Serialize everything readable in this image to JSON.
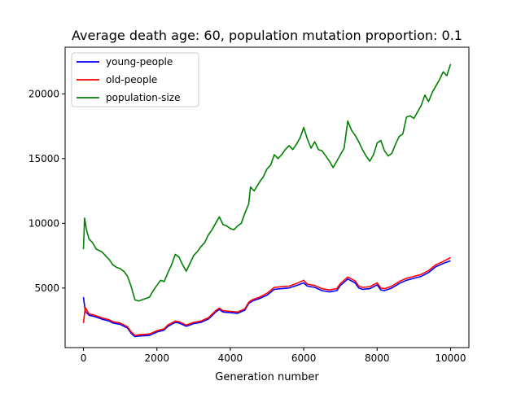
{
  "chart_data": {
    "type": "line",
    "title": "Average death age: 60, population mutation proportion: 0.1",
    "xlabel": "Generation number",
    "ylabel": "",
    "xlim": [
      -500,
      10500
    ],
    "ylim": [
      400,
      23600
    ],
    "xticks": [
      0,
      2000,
      4000,
      6000,
      8000,
      10000
    ],
    "yticks": [
      5000,
      10000,
      15000,
      20000
    ],
    "grid": false,
    "legend_position": "upper-left",
    "series": [
      {
        "name": "young-people",
        "color": "#0000ff",
        "points": [
          [
            0,
            4300
          ],
          [
            50,
            3200
          ],
          [
            150,
            2900
          ],
          [
            300,
            2800
          ],
          [
            500,
            2600
          ],
          [
            700,
            2450
          ],
          [
            800,
            2300
          ],
          [
            1000,
            2200
          ],
          [
            1200,
            1900
          ],
          [
            1300,
            1500
          ],
          [
            1400,
            1250
          ],
          [
            1550,
            1300
          ],
          [
            1800,
            1350
          ],
          [
            2000,
            1600
          ],
          [
            2200,
            1750
          ],
          [
            2300,
            2050
          ],
          [
            2500,
            2350
          ],
          [
            2600,
            2300
          ],
          [
            2800,
            2050
          ],
          [
            2900,
            2150
          ],
          [
            3000,
            2250
          ],
          [
            3200,
            2350
          ],
          [
            3400,
            2600
          ],
          [
            3600,
            3150
          ],
          [
            3700,
            3350
          ],
          [
            3800,
            3150
          ],
          [
            4000,
            3100
          ],
          [
            4200,
            3050
          ],
          [
            4400,
            3300
          ],
          [
            4500,
            3800
          ],
          [
            4600,
            4000
          ],
          [
            4800,
            4200
          ],
          [
            5000,
            4450
          ],
          [
            5200,
            4900
          ],
          [
            5400,
            4950
          ],
          [
            5600,
            5000
          ],
          [
            5800,
            5200
          ],
          [
            6000,
            5400
          ],
          [
            6100,
            5150
          ],
          [
            6300,
            5050
          ],
          [
            6500,
            4800
          ],
          [
            6700,
            4700
          ],
          [
            6900,
            4800
          ],
          [
            7000,
            5200
          ],
          [
            7200,
            5700
          ],
          [
            7400,
            5400
          ],
          [
            7500,
            5000
          ],
          [
            7600,
            4900
          ],
          [
            7800,
            4950
          ],
          [
            8000,
            5250
          ],
          [
            8100,
            4850
          ],
          [
            8200,
            4800
          ],
          [
            8400,
            5000
          ],
          [
            8600,
            5350
          ],
          [
            8800,
            5600
          ],
          [
            9000,
            5750
          ],
          [
            9200,
            5900
          ],
          [
            9400,
            6200
          ],
          [
            9600,
            6650
          ],
          [
            9800,
            6900
          ],
          [
            10000,
            7100
          ]
        ]
      },
      {
        "name": "old-people",
        "color": "#ff0000",
        "points": [
          [
            0,
            2300
          ],
          [
            50,
            3500
          ],
          [
            150,
            3000
          ],
          [
            300,
            2900
          ],
          [
            500,
            2700
          ],
          [
            700,
            2550
          ],
          [
            800,
            2400
          ],
          [
            1000,
            2300
          ],
          [
            1200,
            2000
          ],
          [
            1300,
            1600
          ],
          [
            1400,
            1350
          ],
          [
            1550,
            1400
          ],
          [
            1800,
            1450
          ],
          [
            2000,
            1700
          ],
          [
            2200,
            1850
          ],
          [
            2300,
            2150
          ],
          [
            2500,
            2450
          ],
          [
            2600,
            2400
          ],
          [
            2800,
            2150
          ],
          [
            2900,
            2250
          ],
          [
            3000,
            2350
          ],
          [
            3200,
            2450
          ],
          [
            3400,
            2700
          ],
          [
            3600,
            3250
          ],
          [
            3700,
            3450
          ],
          [
            3800,
            3250
          ],
          [
            4000,
            3200
          ],
          [
            4200,
            3150
          ],
          [
            4400,
            3400
          ],
          [
            4500,
            3900
          ],
          [
            4600,
            4100
          ],
          [
            4800,
            4300
          ],
          [
            5000,
            4600
          ],
          [
            5200,
            5050
          ],
          [
            5400,
            5100
          ],
          [
            5600,
            5150
          ],
          [
            5800,
            5350
          ],
          [
            6000,
            5600
          ],
          [
            6100,
            5300
          ],
          [
            6300,
            5200
          ],
          [
            6500,
            4950
          ],
          [
            6700,
            4850
          ],
          [
            6900,
            4950
          ],
          [
            7000,
            5350
          ],
          [
            7200,
            5850
          ],
          [
            7400,
            5550
          ],
          [
            7500,
            5150
          ],
          [
            7600,
            5050
          ],
          [
            7800,
            5100
          ],
          [
            8000,
            5400
          ],
          [
            8100,
            5000
          ],
          [
            8200,
            4950
          ],
          [
            8400,
            5150
          ],
          [
            8600,
            5500
          ],
          [
            8800,
            5750
          ],
          [
            9000,
            5900
          ],
          [
            9200,
            6050
          ],
          [
            9400,
            6350
          ],
          [
            9600,
            6800
          ],
          [
            9800,
            7050
          ],
          [
            10000,
            7350
          ]
        ]
      },
      {
        "name": "population-size",
        "color": "#008000",
        "points": [
          [
            0,
            8000
          ],
          [
            30,
            10400
          ],
          [
            80,
            9500
          ],
          [
            150,
            8800
          ],
          [
            250,
            8500
          ],
          [
            350,
            8000
          ],
          [
            500,
            7800
          ],
          [
            700,
            7200
          ],
          [
            800,
            6800
          ],
          [
            900,
            6600
          ],
          [
            1000,
            6500
          ],
          [
            1100,
            6300
          ],
          [
            1200,
            5900
          ],
          [
            1300,
            5100
          ],
          [
            1400,
            4100
          ],
          [
            1500,
            4000
          ],
          [
            1600,
            4100
          ],
          [
            1800,
            4300
          ],
          [
            1900,
            4800
          ],
          [
            2000,
            5200
          ],
          [
            2100,
            5600
          ],
          [
            2200,
            5500
          ],
          [
            2300,
            6200
          ],
          [
            2400,
            6800
          ],
          [
            2500,
            7600
          ],
          [
            2600,
            7400
          ],
          [
            2700,
            6800
          ],
          [
            2800,
            6300
          ],
          [
            2900,
            6900
          ],
          [
            3000,
            7500
          ],
          [
            3100,
            7800
          ],
          [
            3200,
            8200
          ],
          [
            3300,
            8500
          ],
          [
            3400,
            9100
          ],
          [
            3500,
            9500
          ],
          [
            3600,
            10000
          ],
          [
            3700,
            10500
          ],
          [
            3800,
            9900
          ],
          [
            3900,
            9800
          ],
          [
            4000,
            9600
          ],
          [
            4100,
            9500
          ],
          [
            4200,
            9800
          ],
          [
            4300,
            10000
          ],
          [
            4400,
            10800
          ],
          [
            4500,
            11500
          ],
          [
            4550,
            12800
          ],
          [
            4650,
            12500
          ],
          [
            4800,
            13200
          ],
          [
            4900,
            13600
          ],
          [
            5000,
            14200
          ],
          [
            5100,
            14500
          ],
          [
            5200,
            15300
          ],
          [
            5300,
            15000
          ],
          [
            5400,
            15300
          ],
          [
            5500,
            15700
          ],
          [
            5600,
            16000
          ],
          [
            5700,
            15700
          ],
          [
            5800,
            16100
          ],
          [
            5900,
            16600
          ],
          [
            6000,
            17400
          ],
          [
            6100,
            16500
          ],
          [
            6200,
            15800
          ],
          [
            6300,
            16300
          ],
          [
            6400,
            15700
          ],
          [
            6500,
            15600
          ],
          [
            6600,
            15200
          ],
          [
            6700,
            14800
          ],
          [
            6800,
            14300
          ],
          [
            6900,
            14800
          ],
          [
            7000,
            15300
          ],
          [
            7100,
            15800
          ],
          [
            7200,
            17900
          ],
          [
            7300,
            17200
          ],
          [
            7400,
            16800
          ],
          [
            7500,
            16300
          ],
          [
            7600,
            15700
          ],
          [
            7700,
            15200
          ],
          [
            7800,
            14800
          ],
          [
            7900,
            15300
          ],
          [
            8000,
            16200
          ],
          [
            8100,
            16400
          ],
          [
            8200,
            15600
          ],
          [
            8300,
            15200
          ],
          [
            8400,
            15400
          ],
          [
            8500,
            16100
          ],
          [
            8600,
            16700
          ],
          [
            8700,
            16900
          ],
          [
            8800,
            18200
          ],
          [
            8900,
            18300
          ],
          [
            9000,
            18100
          ],
          [
            9100,
            18600
          ],
          [
            9200,
            19100
          ],
          [
            9300,
            19900
          ],
          [
            9400,
            19400
          ],
          [
            9500,
            20100
          ],
          [
            9600,
            20600
          ],
          [
            9700,
            21100
          ],
          [
            9800,
            21700
          ],
          [
            9900,
            21400
          ],
          [
            10000,
            22300
          ]
        ]
      }
    ]
  }
}
